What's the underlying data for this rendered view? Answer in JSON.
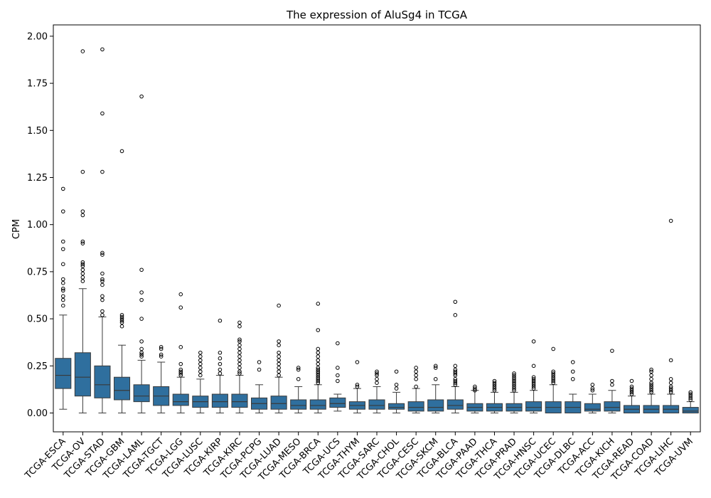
{
  "chart_data": {
    "type": "box",
    "title": "The expression of AluSg4 in TCGA",
    "xlabel": "",
    "ylabel": "CPM",
    "ylim": [
      -0.1,
      2.06
    ],
    "yticks": [
      0.0,
      0.25,
      0.5,
      0.75,
      1.0,
      1.25,
      1.5,
      1.75,
      2.0
    ],
    "ytick_labels": [
      "0.00",
      "0.25",
      "0.50",
      "0.75",
      "1.00",
      "1.25",
      "1.50",
      "1.75",
      "2.00"
    ],
    "grid": false,
    "legend": "none",
    "box_color": "#2f6f9e",
    "categories": [
      "TCGA-ESCA",
      "TCGA-OV",
      "TCGA-STAD",
      "TCGA-GBM",
      "TCGA-LAML",
      "TCGA-TGCT",
      "TCGA-LGG",
      "TCGA-LUSC",
      "TCGA-KIRP",
      "TCGA-KIRC",
      "TCGA-PCPG",
      "TCGA-LUAD",
      "TCGA-MESO",
      "TCGA-BRCA",
      "TCGA-UCS",
      "TCGA-THYM",
      "TCGA-SARC",
      "TCGA-CHOL",
      "TCGA-CESC",
      "TCGA-SKCM",
      "TCGA-BLCA",
      "TCGA-PAAD",
      "TCGA-THCA",
      "TCGA-PRAD",
      "TCGA-HNSC",
      "TCGA-UCEC",
      "TCGA-DLBC",
      "TCGA-ACC",
      "TCGA-KICH",
      "TCGA-READ",
      "TCGA-COAD",
      "TCGA-LIHC",
      "TCGA-UVM"
    ],
    "boxes": [
      {
        "whislo": 0.02,
        "q1": 0.13,
        "med": 0.2,
        "q3": 0.29,
        "whishi": 0.52,
        "fliers": [
          0.57,
          0.6,
          0.62,
          0.65,
          0.66,
          0.69,
          0.71,
          0.79,
          0.87,
          0.91,
          1.07,
          1.19
        ]
      },
      {
        "whislo": 0.0,
        "q1": 0.09,
        "med": 0.19,
        "q3": 0.32,
        "whishi": 0.66,
        "fliers": [
          0.7,
          0.72,
          0.74,
          0.76,
          0.78,
          0.79,
          0.8,
          0.9,
          0.91,
          1.05,
          1.07,
          1.28,
          1.92
        ]
      },
      {
        "whislo": 0.0,
        "q1": 0.08,
        "med": 0.15,
        "q3": 0.25,
        "whishi": 0.51,
        "fliers": [
          0.52,
          0.54,
          0.6,
          0.62,
          0.68,
          0.7,
          0.71,
          0.74,
          0.84,
          0.85,
          1.28,
          1.59,
          1.93
        ]
      },
      {
        "whislo": 0.0,
        "q1": 0.07,
        "med": 0.12,
        "q3": 0.19,
        "whishi": 0.36,
        "fliers": [
          0.46,
          0.48,
          0.49,
          0.5,
          0.51,
          0.52,
          1.39
        ]
      },
      {
        "whislo": 0.0,
        "q1": 0.06,
        "med": 0.09,
        "q3": 0.15,
        "whishi": 0.28,
        "fliers": [
          0.3,
          0.31,
          0.32,
          0.34,
          0.38,
          0.5,
          0.6,
          0.64,
          0.76,
          1.68
        ]
      },
      {
        "whislo": 0.0,
        "q1": 0.04,
        "med": 0.09,
        "q3": 0.14,
        "whishi": 0.27,
        "fliers": [
          0.3,
          0.31,
          0.34,
          0.35
        ]
      },
      {
        "whislo": 0.0,
        "q1": 0.04,
        "med": 0.06,
        "q3": 0.1,
        "whishi": 0.19,
        "fliers": [
          0.2,
          0.21,
          0.22,
          0.23,
          0.26,
          0.35,
          0.56,
          0.63
        ]
      },
      {
        "whislo": 0.0,
        "q1": 0.03,
        "med": 0.06,
        "q3": 0.09,
        "whishi": 0.18,
        "fliers": [
          0.2,
          0.22,
          0.24,
          0.26,
          0.28,
          0.3,
          0.32
        ]
      },
      {
        "whislo": 0.0,
        "q1": 0.03,
        "med": 0.06,
        "q3": 0.1,
        "whishi": 0.2,
        "fliers": [
          0.21,
          0.23,
          0.26,
          0.29,
          0.32,
          0.49
        ]
      },
      {
        "whislo": 0.0,
        "q1": 0.03,
        "med": 0.06,
        "q3": 0.1,
        "whishi": 0.2,
        "fliers": [
          0.21,
          0.22,
          0.24,
          0.26,
          0.28,
          0.3,
          0.32,
          0.34,
          0.36,
          0.38,
          0.39,
          0.46,
          0.48
        ]
      },
      {
        "whislo": 0.0,
        "q1": 0.02,
        "med": 0.05,
        "q3": 0.08,
        "whishi": 0.15,
        "fliers": [
          0.23,
          0.27
        ]
      },
      {
        "whislo": 0.0,
        "q1": 0.02,
        "med": 0.05,
        "q3": 0.09,
        "whishi": 0.19,
        "fliers": [
          0.2,
          0.22,
          0.24,
          0.26,
          0.28,
          0.3,
          0.32,
          0.36,
          0.38,
          0.57
        ]
      },
      {
        "whislo": 0.0,
        "q1": 0.02,
        "med": 0.04,
        "q3": 0.07,
        "whishi": 0.14,
        "fliers": [
          0.18,
          0.23,
          0.24
        ]
      },
      {
        "whislo": 0.0,
        "q1": 0.02,
        "med": 0.04,
        "q3": 0.07,
        "whishi": 0.15,
        "fliers": [
          0.16,
          0.17,
          0.18,
          0.19,
          0.2,
          0.21,
          0.22,
          0.23,
          0.24,
          0.26,
          0.28,
          0.3,
          0.32,
          0.34,
          0.44,
          0.58
        ]
      },
      {
        "whislo": 0.01,
        "q1": 0.03,
        "med": 0.05,
        "q3": 0.08,
        "whishi": 0.1,
        "fliers": [
          0.17,
          0.2,
          0.24,
          0.37
        ]
      },
      {
        "whislo": 0.0,
        "q1": 0.02,
        "med": 0.04,
        "q3": 0.06,
        "whishi": 0.13,
        "fliers": [
          0.14,
          0.15,
          0.27
        ]
      },
      {
        "whislo": 0.0,
        "q1": 0.02,
        "med": 0.04,
        "q3": 0.07,
        "whishi": 0.14,
        "fliers": [
          0.16,
          0.18,
          0.2,
          0.21,
          0.22
        ]
      },
      {
        "whislo": 0.0,
        "q1": 0.02,
        "med": 0.03,
        "q3": 0.05,
        "whishi": 0.11,
        "fliers": [
          0.13,
          0.15,
          0.22
        ]
      },
      {
        "whislo": 0.0,
        "q1": 0.01,
        "med": 0.03,
        "q3": 0.06,
        "whishi": 0.13,
        "fliers": [
          0.14,
          0.18,
          0.2,
          0.22,
          0.24
        ]
      },
      {
        "whislo": 0.0,
        "q1": 0.01,
        "med": 0.03,
        "q3": 0.07,
        "whishi": 0.15,
        "fliers": [
          0.18,
          0.24,
          0.25
        ]
      },
      {
        "whislo": 0.0,
        "q1": 0.02,
        "med": 0.04,
        "q3": 0.07,
        "whishi": 0.14,
        "fliers": [
          0.15,
          0.16,
          0.17,
          0.18,
          0.2,
          0.21,
          0.22,
          0.23,
          0.25,
          0.52,
          0.59
        ]
      },
      {
        "whislo": 0.0,
        "q1": 0.01,
        "med": 0.03,
        "q3": 0.05,
        "whishi": 0.12,
        "fliers": [
          0.12,
          0.13,
          0.14
        ]
      },
      {
        "whislo": 0.0,
        "q1": 0.01,
        "med": 0.03,
        "q3": 0.05,
        "whishi": 0.11,
        "fliers": [
          0.12,
          0.13,
          0.14,
          0.15,
          0.16,
          0.17
        ]
      },
      {
        "whislo": 0.0,
        "q1": 0.01,
        "med": 0.03,
        "q3": 0.05,
        "whishi": 0.11,
        "fliers": [
          0.12,
          0.13,
          0.14,
          0.15,
          0.16,
          0.17,
          0.18,
          0.19,
          0.2,
          0.21
        ]
      },
      {
        "whislo": 0.0,
        "q1": 0.01,
        "med": 0.03,
        "q3": 0.06,
        "whishi": 0.12,
        "fliers": [
          0.13,
          0.14,
          0.15,
          0.16,
          0.17,
          0.18,
          0.19,
          0.25,
          0.38
        ]
      },
      {
        "whislo": 0.0,
        "q1": 0.0,
        "med": 0.03,
        "q3": 0.06,
        "whishi": 0.15,
        "fliers": [
          0.16,
          0.17,
          0.18,
          0.19,
          0.2,
          0.21,
          0.22,
          0.34
        ]
      },
      {
        "whislo": 0.0,
        "q1": 0.0,
        "med": 0.03,
        "q3": 0.06,
        "whishi": 0.1,
        "fliers": [
          0.18,
          0.22,
          0.27
        ]
      },
      {
        "whislo": 0.0,
        "q1": 0.01,
        "med": 0.02,
        "q3": 0.05,
        "whishi": 0.1,
        "fliers": [
          0.12,
          0.13,
          0.15
        ]
      },
      {
        "whislo": 0.0,
        "q1": 0.01,
        "med": 0.03,
        "q3": 0.06,
        "whishi": 0.12,
        "fliers": [
          0.15,
          0.17,
          0.33
        ]
      },
      {
        "whislo": 0.0,
        "q1": 0.0,
        "med": 0.02,
        "q3": 0.04,
        "whishi": 0.09,
        "fliers": [
          0.1,
          0.11,
          0.12,
          0.13,
          0.14,
          0.17
        ]
      },
      {
        "whislo": 0.0,
        "q1": 0.0,
        "med": 0.02,
        "q3": 0.04,
        "whishi": 0.1,
        "fliers": [
          0.11,
          0.12,
          0.13,
          0.14,
          0.15,
          0.16,
          0.18,
          0.2,
          0.22,
          0.23
        ]
      },
      {
        "whislo": 0.0,
        "q1": 0.0,
        "med": 0.02,
        "q3": 0.04,
        "whishi": 0.1,
        "fliers": [
          0.11,
          0.12,
          0.13,
          0.14,
          0.16,
          0.18,
          0.28,
          1.02
        ]
      },
      {
        "whislo": 0.0,
        "q1": 0.0,
        "med": 0.01,
        "q3": 0.03,
        "whishi": 0.06,
        "fliers": [
          0.07,
          0.08,
          0.09,
          0.1,
          0.11
        ]
      }
    ]
  }
}
